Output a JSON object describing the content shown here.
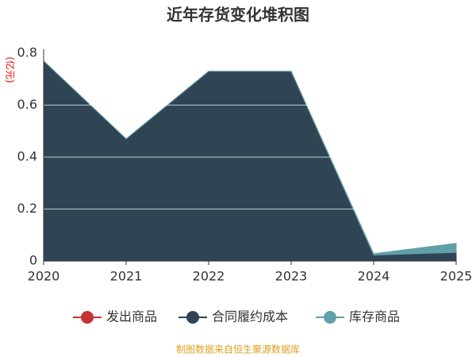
{
  "chart_data": {
    "type": "stacked-area",
    "title": "近年存货变化堆积图",
    "y_label": "(亿元)",
    "categories": [
      "2020",
      "2021",
      "2022",
      "2023",
      "2024",
      "2025"
    ],
    "series": [
      {
        "name": "发出商品",
        "color": "#c23531",
        "values": [
          0,
          0,
          0,
          0,
          0.003,
          0.003
        ]
      },
      {
        "name": "合同履约成本",
        "color": "#2f4554",
        "values": [
          0.77,
          0.47,
          0.73,
          0.73,
          0.02,
          0.03
        ]
      },
      {
        "name": "库存商品",
        "color": "#61a0a8",
        "values": [
          0,
          0,
          0,
          0,
          0.005,
          0.035
        ]
      }
    ],
    "ylim": [
      0,
      0.8
    ],
    "yticks": [
      0,
      0.2,
      0.4,
      0.6,
      0.8
    ],
    "grid": true,
    "source": "制图数据来自恒生聚源数据库"
  }
}
